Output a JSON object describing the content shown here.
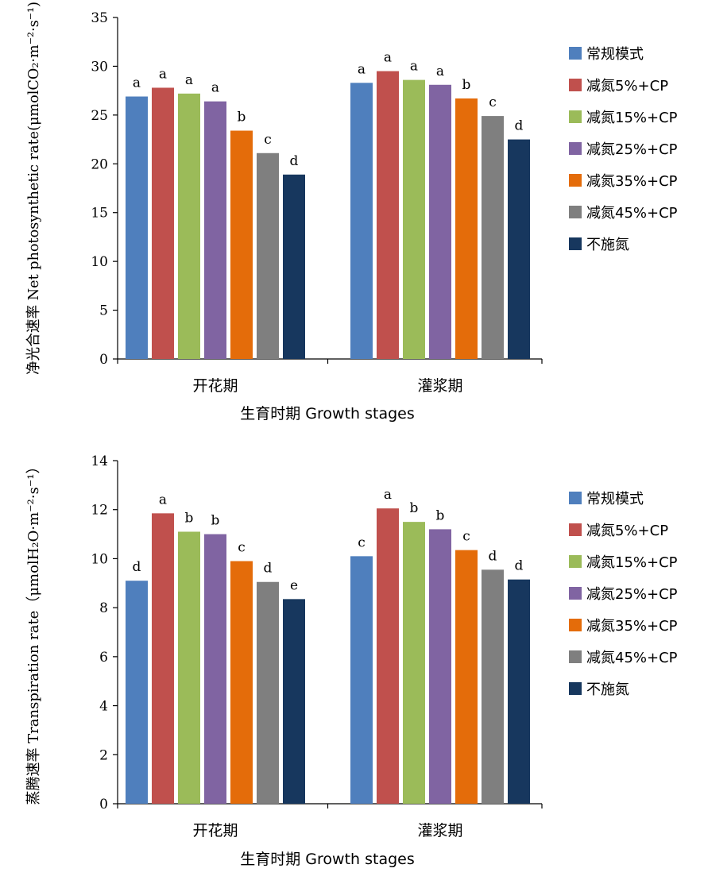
{
  "chart_data": [
    {
      "type": "bar",
      "title": "",
      "xlabel": "生育时期 Growth stages",
      "ylabel": "净光合速率 Net photosynthetic rate(μmolCO₂·m⁻²·s⁻¹)",
      "ylim": [
        0,
        35
      ],
      "yticks": [
        0,
        5,
        10,
        15,
        20,
        25,
        30,
        35
      ],
      "legend_position": "right",
      "categories": [
        "开花期",
        "灌浆期"
      ],
      "series": [
        {
          "name": "常规模式",
          "color": "#4f7fbd",
          "values": [
            26.9,
            28.3
          ],
          "labels": [
            "a",
            "a"
          ]
        },
        {
          "name": "减氮5%+CP",
          "color": "#c0504d",
          "values": [
            27.8,
            29.5
          ],
          "labels": [
            "a",
            "a"
          ]
        },
        {
          "name": "减氮15%+CP",
          "color": "#9bbb59",
          "values": [
            27.2,
            28.6
          ],
          "labels": [
            "a",
            "a"
          ]
        },
        {
          "name": "减氮25%+CP",
          "color": "#8064a2",
          "values": [
            26.4,
            28.1
          ],
          "labels": [
            "a",
            "a"
          ]
        },
        {
          "name": "减氮35%+CP",
          "color": "#e46c0a",
          "values": [
            23.4,
            26.7
          ],
          "labels": [
            "b",
            "b"
          ]
        },
        {
          "name": "减氮45%+CP",
          "color": "#7f7f7f",
          "values": [
            21.1,
            24.9
          ],
          "labels": [
            "c",
            "c"
          ]
        },
        {
          "name": "不施氮",
          "color": "#17375e",
          "values": [
            18.9,
            22.5
          ],
          "labels": [
            "d",
            "d"
          ]
        }
      ]
    },
    {
      "type": "bar",
      "title": "",
      "xlabel": "生育时期  Growth stages",
      "ylabel": "蒸腾速率 Transpiration rate（μmolH₂O·m⁻²·s⁻¹）",
      "ylim": [
        0,
        14
      ],
      "yticks": [
        0,
        2,
        4,
        6,
        8,
        10,
        12,
        14
      ],
      "legend_position": "right",
      "categories": [
        "开花期",
        "灌浆期"
      ],
      "series": [
        {
          "name": "常规模式",
          "color": "#4f7fbd",
          "values": [
            9.1,
            10.1
          ],
          "labels": [
            "d",
            "c"
          ]
        },
        {
          "name": "减氮5%+CP",
          "color": "#c0504d",
          "values": [
            11.85,
            12.05
          ],
          "labels": [
            "a",
            "a"
          ]
        },
        {
          "name": "减氮15%+CP",
          "color": "#9bbb59",
          "values": [
            11.1,
            11.5
          ],
          "labels": [
            "b",
            "b"
          ]
        },
        {
          "name": "减氮25%+CP",
          "color": "#8064a2",
          "values": [
            11.0,
            11.2
          ],
          "labels": [
            "b",
            "b"
          ]
        },
        {
          "name": "减氮35%+CP",
          "color": "#e46c0a",
          "values": [
            9.9,
            10.35
          ],
          "labels": [
            "c",
            "c"
          ]
        },
        {
          "name": "减氮45%+CP",
          "color": "#7f7f7f",
          "values": [
            9.05,
            9.55
          ],
          "labels": [
            "d",
            "d"
          ]
        },
        {
          "name": "不施氮",
          "color": "#17375e",
          "values": [
            8.35,
            9.15
          ],
          "labels": [
            "e",
            "d"
          ]
        }
      ]
    }
  ]
}
